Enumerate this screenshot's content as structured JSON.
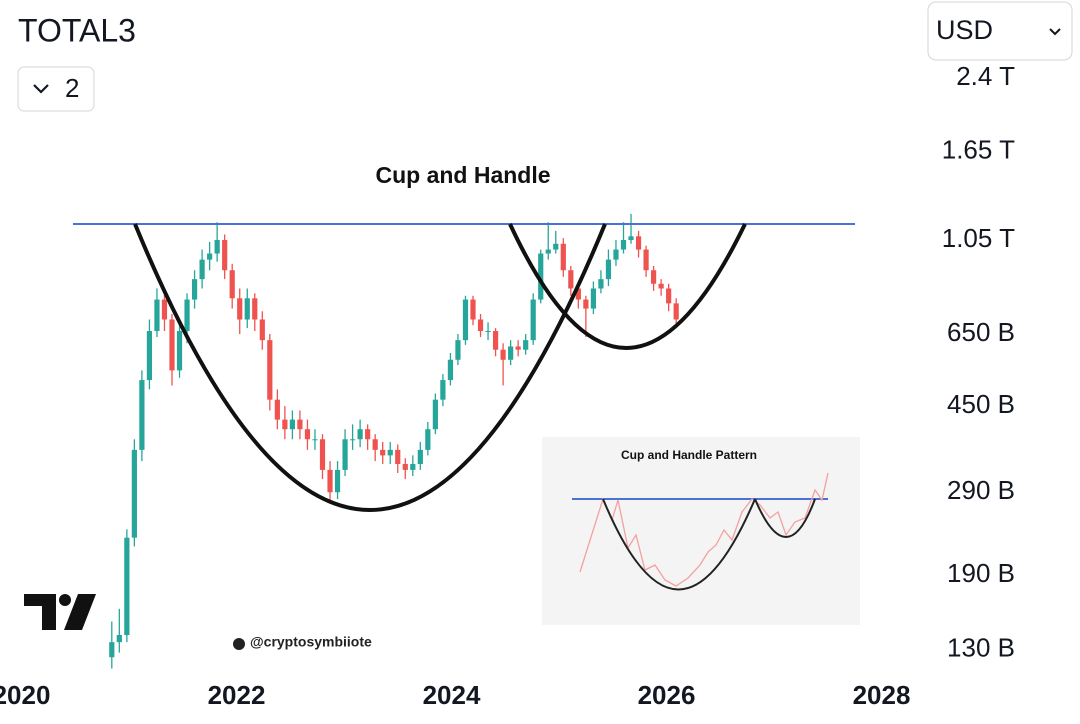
{
  "header": {
    "symbol": "TOTAL3",
    "interval": "2",
    "currency": "USD"
  },
  "chart_data": {
    "type": "candlestick",
    "title": "Cup and Handle",
    "inset_title": "Cup and Handle Pattern",
    "watermark": "@cryptosymbiiote",
    "log_scale": true,
    "up_color": "#26a69a",
    "down_color": "#ef5350",
    "xlim": [
      2019.8,
      2028.3
    ],
    "xticks": [
      2020,
      2022,
      2024,
      2026,
      2028
    ],
    "ylim": [
      122,
      2630
    ],
    "yticks": [
      {
        "value": 130,
        "label": "130 B"
      },
      {
        "value": 190,
        "label": "190 B"
      },
      {
        "value": 290,
        "label": "290 B"
      },
      {
        "value": 450,
        "label": "450 B"
      },
      {
        "value": 650,
        "label": "650 B"
      },
      {
        "value": 1050,
        "label": "1.05 T"
      },
      {
        "value": 1650,
        "label": "1.65 T"
      },
      {
        "value": 2400,
        "label": "2.4 T"
      }
    ],
    "x": [
      2020.84,
      2020.91,
      2020.98,
      2021.05,
      2021.12,
      2021.19,
      2021.26,
      2021.33,
      2021.4,
      2021.47,
      2021.54,
      2021.61,
      2021.68,
      2021.75,
      2021.82,
      2021.89,
      2021.96,
      2022.03,
      2022.1,
      2022.17,
      2022.24,
      2022.31,
      2022.38,
      2022.45,
      2022.52,
      2022.59,
      2022.66,
      2022.73,
      2022.8,
      2022.87,
      2022.94,
      2023.01,
      2023.08,
      2023.15,
      2023.22,
      2023.29,
      2023.36,
      2023.43,
      2023.5,
      2023.57,
      2023.64,
      2023.71,
      2023.78,
      2023.85,
      2023.92,
      2023.99,
      2024.06,
      2024.13,
      2024.2,
      2024.27,
      2024.34,
      2024.41,
      2024.48,
      2024.55,
      2024.62,
      2024.69,
      2024.76,
      2024.83,
      2024.9,
      2024.97,
      2025.04,
      2025.11,
      2025.18,
      2025.25,
      2025.32,
      2025.39,
      2025.46,
      2025.53,
      2025.6,
      2025.67,
      2025.74,
      2025.81,
      2025.88,
      2025.95,
      2026.02,
      2026.09
    ],
    "open": [
      125,
      135,
      140,
      230,
      360,
      514,
      660,
      775,
      700,
      540,
      660,
      775,
      860,
      950,
      980,
      1050,
      900,
      780,
      700,
      780,
      700,
      630,
      465,
      420,
      400,
      420,
      400,
      380,
      380,
      325,
      290,
      325,
      380,
      380,
      400,
      380,
      360,
      350,
      360,
      335,
      325,
      335,
      360,
      400,
      465,
      514,
      570,
      630,
      775,
      700,
      660,
      660,
      600,
      570,
      610,
      600,
      630,
      775,
      980,
      1000,
      1030,
      900,
      820,
      775,
      740,
      820,
      860,
      950,
      1000,
      1050,
      1070,
      1000,
      900,
      840,
      820,
      760
    ],
    "high": [
      150,
      160,
      240,
      380,
      540,
      700,
      820,
      800,
      720,
      690,
      800,
      900,
      1000,
      1040,
      1150,
      1080,
      930,
      820,
      820,
      800,
      730,
      650,
      490,
      450,
      440,
      440,
      420,
      400,
      390,
      340,
      340,
      400,
      410,
      420,
      410,
      390,
      375,
      375,
      370,
      345,
      350,
      375,
      415,
      480,
      530,
      590,
      650,
      790,
      790,
      720,
      690,
      670,
      620,
      630,
      630,
      650,
      800,
      1000,
      1150,
      1100,
      1060,
      920,
      840,
      790,
      850,
      900,
      1000,
      1050,
      1150,
      1200,
      1100,
      1020,
      920,
      860,
      840,
      780
    ],
    "low": [
      118,
      128,
      135,
      220,
      340,
      490,
      640,
      660,
      500,
      520,
      620,
      740,
      820,
      900,
      940,
      860,
      740,
      650,
      670,
      660,
      600,
      440,
      400,
      380,
      380,
      380,
      360,
      360,
      310,
      275,
      280,
      315,
      360,
      365,
      360,
      340,
      335,
      335,
      320,
      310,
      315,
      325,
      350,
      390,
      450,
      500,
      555,
      615,
      680,
      640,
      630,
      580,
      500,
      555,
      580,
      585,
      615,
      760,
      950,
      980,
      870,
      790,
      740,
      640,
      720,
      800,
      830,
      920,
      980,
      1030,
      960,
      870,
      810,
      790,
      730,
      680
    ],
    "close": [
      135,
      140,
      230,
      360,
      514,
      660,
      775,
      700,
      540,
      660,
      775,
      860,
      950,
      980,
      1050,
      900,
      780,
      700,
      780,
      700,
      630,
      465,
      420,
      400,
      420,
      400,
      380,
      380,
      325,
      290,
      325,
      380,
      380,
      400,
      380,
      360,
      350,
      360,
      335,
      325,
      335,
      360,
      400,
      465,
      514,
      570,
      630,
      775,
      700,
      660,
      660,
      600,
      570,
      610,
      600,
      630,
      775,
      980,
      1000,
      1030,
      900,
      820,
      775,
      740,
      820,
      860,
      950,
      1000,
      1050,
      1070,
      1000,
      900,
      840,
      820,
      760,
      700
    ]
  }
}
